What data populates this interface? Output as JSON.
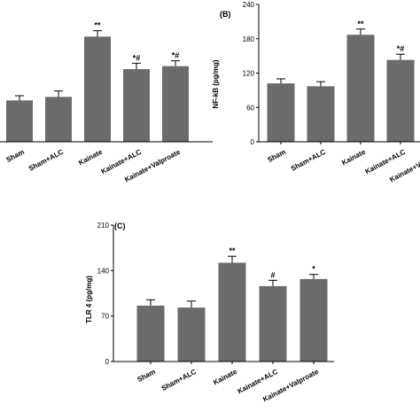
{
  "chart_data": [
    {
      "panel": "A",
      "panel_label": "",
      "type": "bar",
      "ylabel": "",
      "ylim": [
        0,
        240
      ],
      "yticks": [],
      "categories": [
        "Sham",
        "Sham+ALC",
        "Kainate",
        "Kainate+ALC",
        "Kainate+Valproate"
      ],
      "values": [
        70,
        76,
        178,
        123,
        128
      ],
      "errors": [
        8,
        10,
        10,
        10,
        9
      ],
      "significance": [
        "",
        "",
        "**",
        "*#",
        "*#"
      ],
      "colors": {
        "bar": "#6b6b6b",
        "axis": "#000000"
      }
    },
    {
      "panel": "B",
      "panel_label": "(B)",
      "type": "bar",
      "ylabel": "NF-kB (pg/mg)",
      "ylim": [
        0,
        240
      ],
      "yticks": [
        0,
        60,
        120,
        180,
        240
      ],
      "categories": [
        "Sham",
        "Sham+ALC",
        "Kainate",
        "Kainate+ALC",
        "Kainate+Valproate"
      ],
      "values": [
        102,
        97,
        187,
        143,
        0
      ],
      "errors": [
        8,
        8,
        10,
        10,
        0
      ],
      "significance": [
        "",
        "",
        "**",
        "*#",
        ""
      ],
      "colors": {
        "bar": "#6b6b6b",
        "axis": "#000000"
      }
    },
    {
      "panel": "C",
      "panel_label": "(C)",
      "type": "bar",
      "ylabel": "TLR 4 (pg/mg)",
      "ylim": [
        0,
        210
      ],
      "yticks": [
        0,
        70,
        140,
        210
      ],
      "categories": [
        "Sham",
        "Sham+ALC",
        "Kainate",
        "Kainate+ALC",
        "Kainate+Valproate"
      ],
      "values": [
        86,
        83,
        152,
        116,
        127
      ],
      "errors": [
        9,
        10,
        10,
        9,
        7
      ],
      "significance": [
        "",
        "",
        "**",
        "#",
        "*"
      ],
      "colors": {
        "bar": "#6b6b6b",
        "axis": "#000000"
      }
    }
  ]
}
